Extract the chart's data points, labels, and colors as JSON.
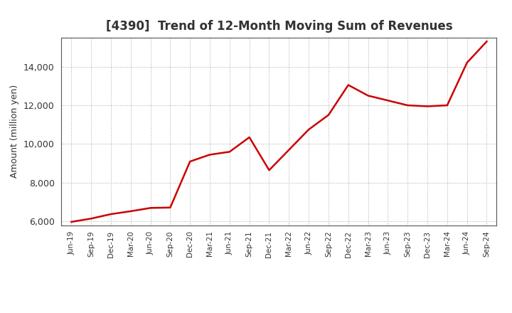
{
  "title": "[4390]  Trend of 12-Month Moving Sum of Revenues",
  "ylabel": "Amount (million yen)",
  "line_color": "#CC0000",
  "background_color": "#ffffff",
  "plot_bg_color": "#ffffff",
  "grid_color": "#aaaaaa",
  "ylim": [
    5800,
    15500
  ],
  "yticks": [
    6000,
    8000,
    10000,
    12000,
    14000
  ],
  "title_color": "#333333",
  "x_labels": [
    "Jun-19",
    "Sep-19",
    "Dec-19",
    "Mar-20",
    "Jun-20",
    "Sep-20",
    "Dec-20",
    "Mar-21",
    "Jun-21",
    "Sep-21",
    "Dec-21",
    "Mar-22",
    "Jun-22",
    "Sep-22",
    "Dec-22",
    "Mar-23",
    "Jun-23",
    "Sep-23",
    "Dec-23",
    "Mar-24",
    "Jun-24",
    "Sep-24"
  ],
  "y_values": [
    5980,
    6150,
    6380,
    6530,
    6700,
    6720,
    9100,
    9450,
    9600,
    10350,
    8650,
    9700,
    10750,
    11500,
    13050,
    12500,
    12250,
    12000,
    11950,
    12000,
    14200,
    15300
  ]
}
